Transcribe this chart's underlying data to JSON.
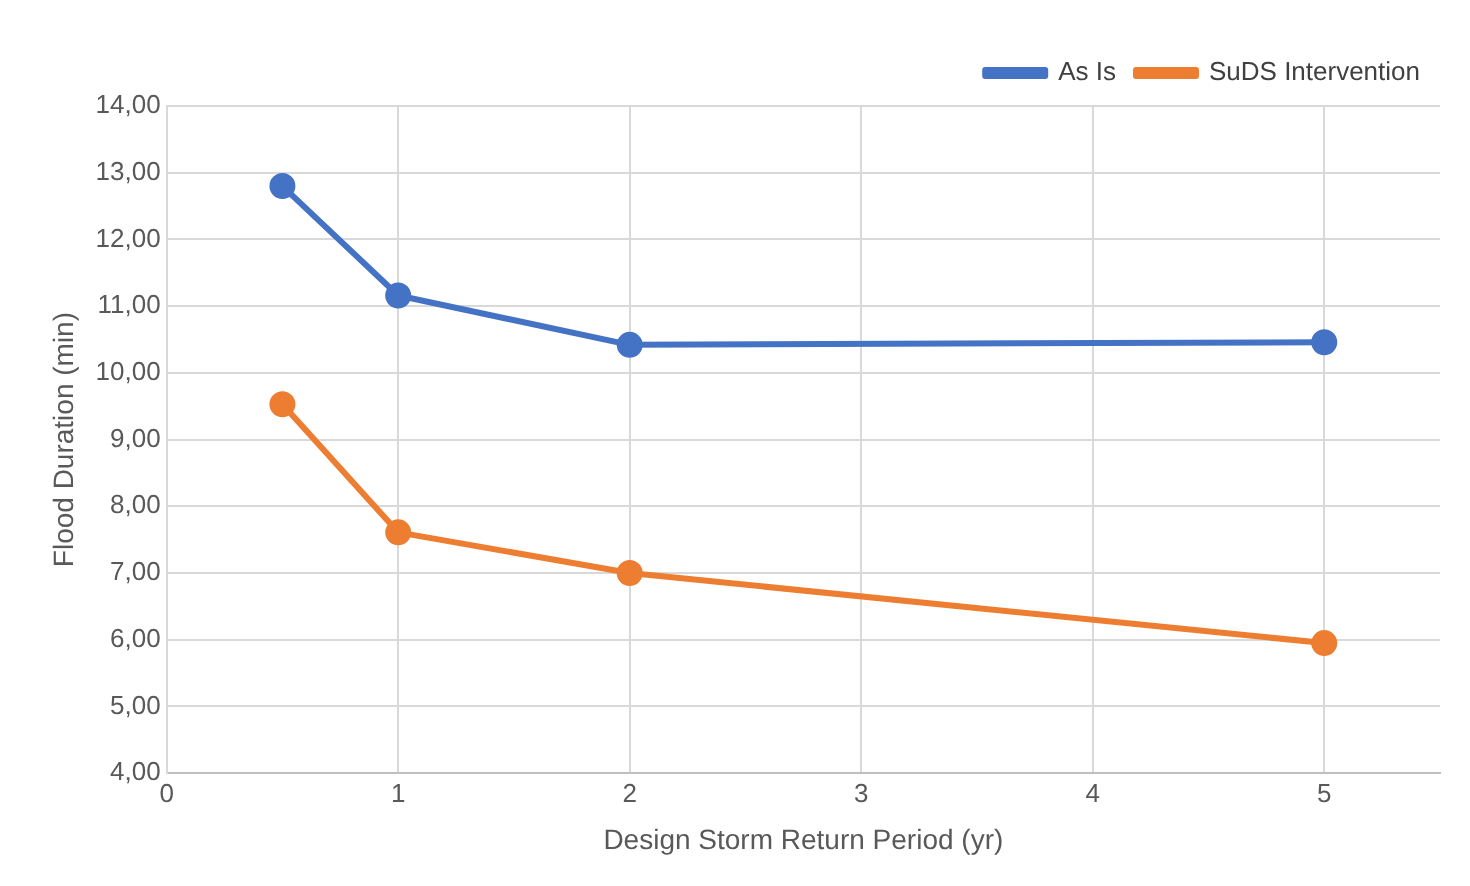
{
  "chart_data": {
    "type": "line",
    "xlabel": "Design Storm Return Period (yr)",
    "ylabel": "Flood Duration (min)",
    "x": [
      0.5,
      1,
      2,
      5
    ],
    "series": [
      {
        "name": "As Is",
        "color": "#4472c4",
        "values": [
          12.8,
          11.16,
          10.42,
          10.46
        ]
      },
      {
        "name": "SuDS Intervention",
        "color": "#ed7d31",
        "values": [
          9.53,
          7.61,
          7.0,
          5.95
        ]
      }
    ],
    "xlim": [
      0,
      5.5
    ],
    "xticks": [
      0,
      1,
      2,
      3,
      4,
      5
    ],
    "ylim": [
      4,
      14
    ],
    "yticks": [
      {
        "value": 4,
        "label": "4,00"
      },
      {
        "value": 5,
        "label": "5,00"
      },
      {
        "value": 6,
        "label": "6,00"
      },
      {
        "value": 7,
        "label": "7,00"
      },
      {
        "value": 8,
        "label": "8,00"
      },
      {
        "value": 9,
        "label": "9,00"
      },
      {
        "value": 10,
        "label": "10,00"
      },
      {
        "value": 11,
        "label": "11,00"
      },
      {
        "value": 12,
        "label": "12,00"
      },
      {
        "value": 13,
        "label": "13,00"
      },
      {
        "value": 14,
        "label": "14,00"
      }
    ],
    "grid": true,
    "legend": "top right",
    "marker": "circle",
    "line_style": "solid"
  }
}
